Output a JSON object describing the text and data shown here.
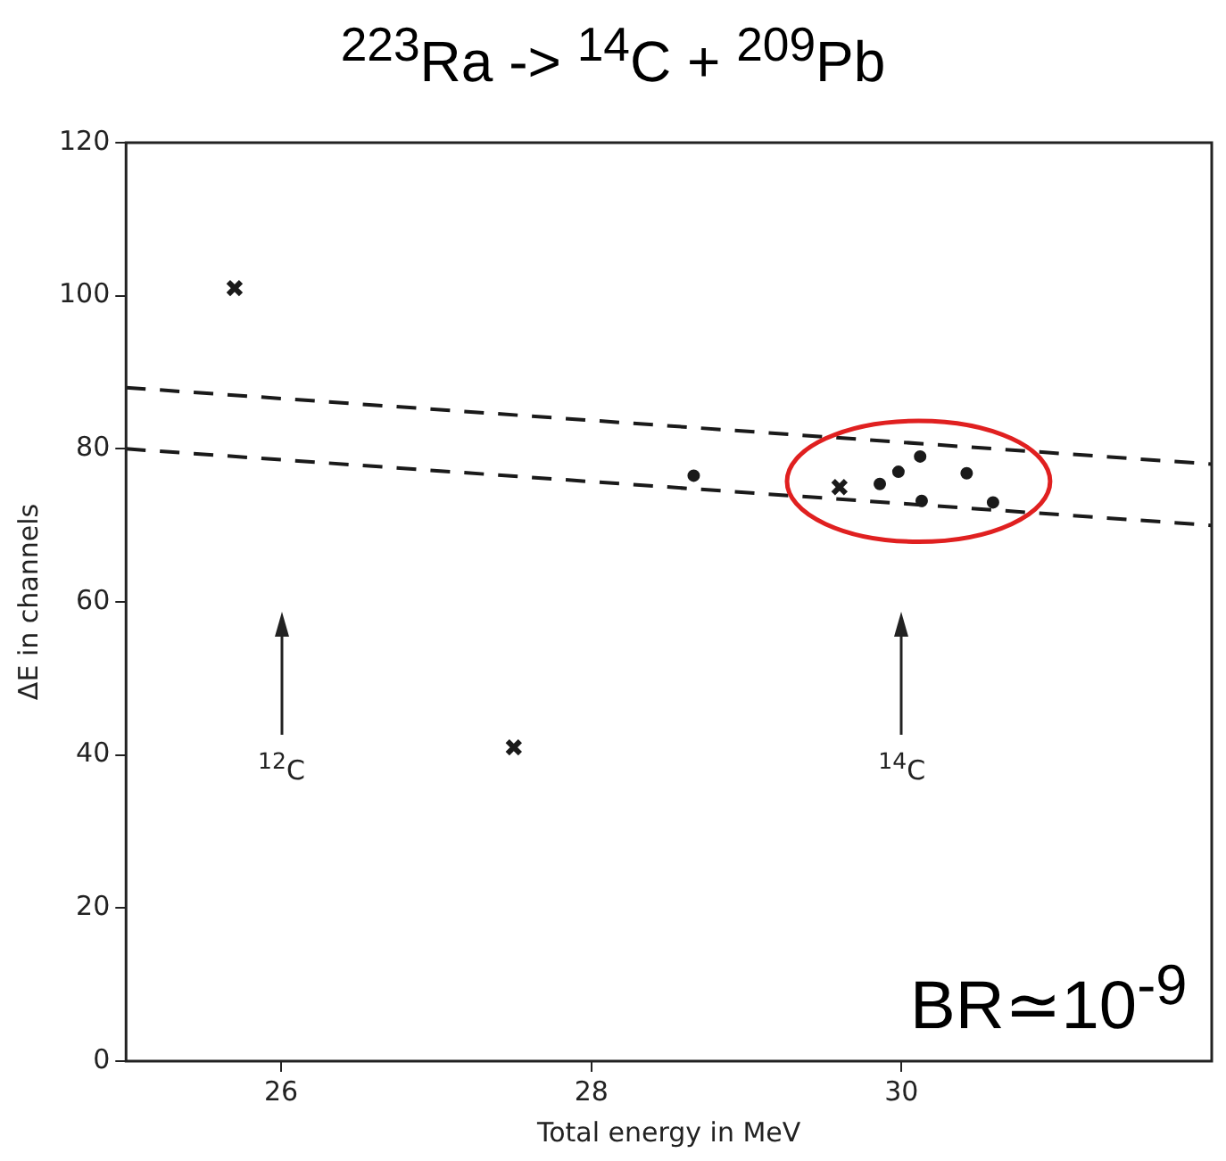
{
  "chart_data": {
    "type": "scatter",
    "title": "$^{223}$Ra -> $^{14}$C + $^{209}$Pb",
    "xlabel": "Total energy in MeV",
    "ylabel": "ΔE in channels",
    "xlim": [
      25,
      32
    ],
    "xticks": [
      26,
      28,
      30
    ],
    "ylim": [
      0,
      120
    ],
    "yticks": [
      0,
      20,
      40,
      60,
      80,
      100,
      120
    ],
    "grid": false,
    "legend": false,
    "series": [
      {
        "type": "line",
        "color": "#1a1a1a",
        "marker": "none",
        "line_style": "dashed",
        "x": [
          25,
          32
        ],
        "values": [
          88,
          78
        ]
      },
      {
        "type": "line",
        "color": "#1a1a1a",
        "marker": "none",
        "line_style": "dashed",
        "x": [
          25,
          32
        ],
        "values": [
          80,
          70
        ]
      },
      {
        "type": "scatter",
        "color": "#1a1a1a",
        "marker": "cross",
        "x": [
          25.7,
          27.5,
          29.6
        ],
        "values": [
          101,
          41,
          75
        ]
      },
      {
        "type": "scatter",
        "color": "#1a1a1a",
        "marker": "circle",
        "x": [
          28.66,
          29.86,
          29.98,
          30.12,
          30.13,
          30.42,
          30.59
        ],
        "values": [
          76.5,
          75.4,
          77,
          79,
          73.2,
          76.8,
          73
        ]
      }
    ],
    "ref_lines": [
      {
        "axis": "x",
        "value": 26,
        "label": "$^{12}$C"
      },
      {
        "axis": "x",
        "value": 30,
        "label": "$^{14}$C"
      }
    ],
    "annotations": [
      "BR≃10$^{-9}$"
    ]
  }
}
